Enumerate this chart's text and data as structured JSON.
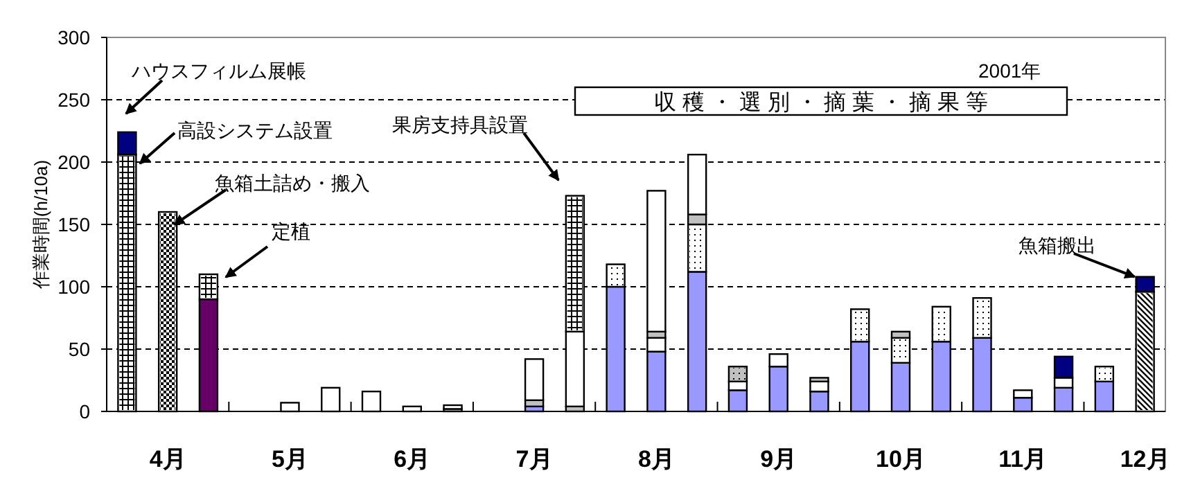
{
  "chart_data": {
    "type": "bar",
    "stacked": true,
    "ylabel": "作業時間(h/10a)",
    "categories": [
      null,
      "4月",
      null,
      null,
      "5月",
      null,
      null,
      "6月",
      null,
      null,
      "7月",
      null,
      null,
      "8月",
      null,
      null,
      "9月",
      null,
      null,
      "10月",
      null,
      null,
      "11月",
      null,
      null,
      "12月"
    ],
    "series": [
      {
        "color": "#9999ff",
        "values": [
          null,
          null,
          null,
          null,
          null,
          null,
          null,
          null,
          null,
          null,
          4,
          null,
          100,
          48,
          112,
          17,
          36,
          16,
          56,
          39,
          56,
          59,
          11,
          19,
          24,
          null
        ]
      },
      {
        "color": "#ffffff",
        "values": [
          null,
          null,
          null,
          null,
          null,
          null,
          null,
          null,
          null,
          null,
          null,
          null,
          18,
          11,
          38,
          7,
          10,
          8,
          26,
          20,
          28,
          32,
          6,
          8,
          12,
          null
        ]
      },
      {
        "color": "#c0c0c0",
        "values": [
          null,
          null,
          null,
          null,
          null,
          null,
          null,
          null,
          2,
          null,
          5,
          4,
          null,
          5,
          8,
          12,
          null,
          3,
          null,
          5,
          null,
          null,
          null,
          null,
          null,
          null
        ]
      },
      {
        "color": "#ffffff",
        "values": [
          null,
          null,
          null,
          null,
          7,
          19,
          16,
          4,
          3,
          null,
          33,
          60,
          null,
          113,
          48,
          null,
          null,
          null,
          null,
          null,
          null,
          null,
          null,
          null,
          null,
          null
        ]
      },
      {
        "color": "#660066",
        "values": [
          null,
          null,
          90,
          null,
          null,
          null,
          null,
          null,
          null,
          null,
          null,
          null,
          null,
          null,
          null,
          null,
          null,
          null,
          null,
          null,
          null,
          null,
          null,
          null,
          null,
          null
        ]
      },
      {
        "color": "#ffffff",
        "values": [
          null,
          160,
          null,
          null,
          null,
          null,
          null,
          null,
          null,
          null,
          null,
          null,
          null,
          null,
          null,
          null,
          null,
          null,
          null,
          null,
          null,
          null,
          null,
          null,
          null,
          null
        ]
      },
      {
        "color": "#ffffff",
        "values": [
          null,
          null,
          null,
          null,
          null,
          null,
          null,
          null,
          null,
          null,
          null,
          null,
          null,
          null,
          null,
          null,
          null,
          null,
          null,
          null,
          null,
          null,
          null,
          null,
          null,
          96
        ]
      },
      {
        "color": "#ffffff",
        "values": [
          206,
          null,
          20,
          null,
          null,
          null,
          null,
          null,
          null,
          null,
          null,
          109,
          null,
          null,
          null,
          null,
          null,
          null,
          null,
          null,
          null,
          null,
          null,
          null,
          null,
          null
        ]
      },
      {
        "color": "#000080",
        "values": [
          18,
          null,
          null,
          null,
          null,
          null,
          null,
          null,
          null,
          null,
          null,
          null,
          null,
          null,
          null,
          null,
          null,
          null,
          null,
          null,
          null,
          null,
          null,
          17,
          null,
          12
        ]
      }
    ],
    "ylim": [
      0,
      300
    ],
    "yticks": [
      0,
      50,
      100,
      150,
      200,
      250,
      300
    ],
    "grid": "y",
    "annotations": [
      "ハウスフィルム展帳",
      "高設システム設置",
      "魚箱土詰め・搬入",
      "定植",
      "果房支持具設置",
      "収 穫 ・ 選 別 ・ 摘 葉 ・ 摘 果 等",
      "2001年",
      {
        "text": "魚箱搬出",
        "x": "12月",
        "y": 108
      }
    ]
  }
}
